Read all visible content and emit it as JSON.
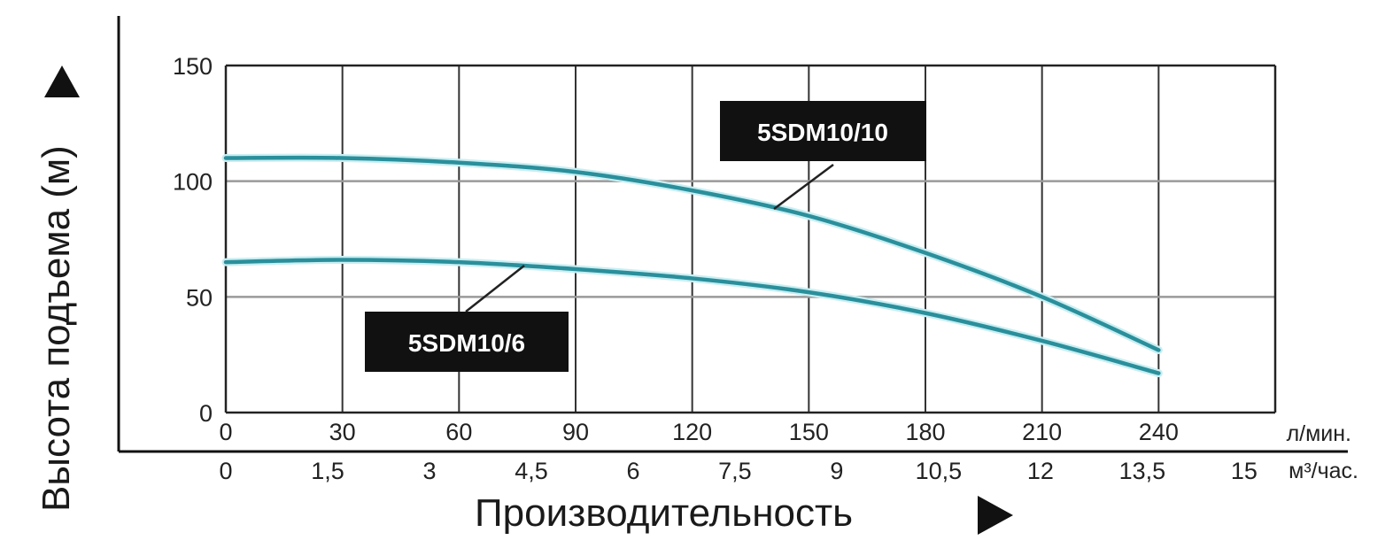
{
  "chart_data": {
    "type": "line",
    "ylabel": "Высота подъема (м)",
    "xlabel": "Производительность",
    "ylim": [
      0,
      150
    ],
    "yticks": [
      "150",
      "100",
      "50",
      "0"
    ],
    "ytick_values": [
      150,
      100,
      50,
      0
    ],
    "grid": true,
    "x_primary": {
      "unit": "л/мин.",
      "ticks": [
        "0",
        "30",
        "60",
        "90",
        "120",
        "150",
        "180",
        "210",
        "240"
      ],
      "tick_values": [
        0,
        30,
        60,
        90,
        120,
        150,
        180,
        210,
        240
      ]
    },
    "x_secondary": {
      "unit": "м³/час.",
      "ticks": [
        "0",
        "1,5",
        "3",
        "4,5",
        "6",
        "7,5",
        "9",
        "10,5",
        "12",
        "13,5",
        "15"
      ]
    },
    "xlim": [
      0,
      270
    ],
    "series": [
      {
        "name": "5SDM10/10",
        "color": "#2a8f9b",
        "x": [
          0,
          30,
          60,
          90,
          120,
          150,
          180,
          210,
          240
        ],
        "y": [
          110,
          110,
          108,
          104,
          96,
          85,
          69,
          50,
          27
        ]
      },
      {
        "name": "5SDM10/6",
        "color": "#2a8f9b",
        "x": [
          0,
          30,
          60,
          90,
          120,
          150,
          180,
          210,
          240
        ],
        "y": [
          65,
          66,
          65,
          62,
          58,
          52,
          43,
          31,
          17
        ]
      }
    ]
  }
}
